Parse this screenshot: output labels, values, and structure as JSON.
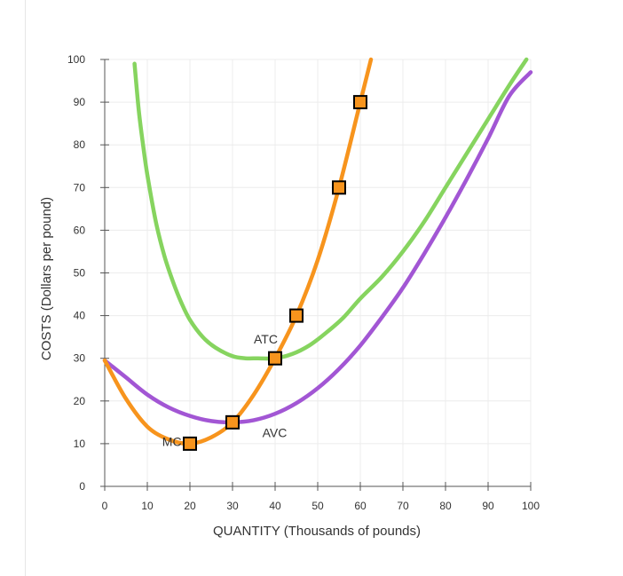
{
  "chart_data": {
    "type": "line",
    "xlabel": "QUANTITY (Thousands of pounds)",
    "ylabel": "COSTS (Dollars per pound)",
    "xlim": [
      0,
      100
    ],
    "ylim": [
      0,
      100
    ],
    "x_ticks": [
      "0",
      "10",
      "20",
      "30",
      "40",
      "50",
      "60",
      "70",
      "80",
      "90",
      "100"
    ],
    "y_ticks": [
      "0",
      "10",
      "20",
      "30",
      "40",
      "50",
      "60",
      "70",
      "80",
      "90",
      "100"
    ],
    "grid": true,
    "series": [
      {
        "name": "ATC",
        "color": "#86d45f",
        "label_at": [
          35,
          33.5
        ],
        "x": [
          7,
          8,
          9,
          10,
          12,
          14,
          16,
          18,
          20,
          23,
          26,
          30,
          33,
          36,
          40,
          44,
          48,
          52,
          56,
          60,
          65,
          70,
          75,
          80,
          85,
          90,
          95,
          99
        ],
        "y": [
          99,
          88,
          80,
          73,
          62,
          54,
          48,
          43,
          39,
          35,
          32.5,
          30.5,
          30,
          30,
          30,
          31,
          33,
          36,
          39.5,
          44,
          49,
          55,
          62,
          70,
          78,
          86,
          94,
          100
        ]
      },
      {
        "name": "AVC",
        "color": "#a256d4",
        "label_at": [
          37,
          11.5
        ],
        "x": [
          0,
          5,
          10,
          15,
          20,
          25,
          30,
          35,
          40,
          45,
          50,
          55,
          60,
          65,
          70,
          75,
          80,
          85,
          90,
          95,
          100
        ],
        "y": [
          29.5,
          25.5,
          21.5,
          18.5,
          16.5,
          15.3,
          15,
          15.5,
          17,
          19.5,
          23,
          27.5,
          33,
          39.5,
          46.5,
          54.5,
          63,
          72,
          81.5,
          91.5,
          97
        ]
      },
      {
        "name": "MC",
        "color": "#f7941d",
        "label_at": [
          13.5,
          9.5
        ],
        "markers_x": [
          20,
          30,
          40,
          45,
          55,
          60
        ],
        "markers_y": [
          10,
          15,
          30,
          40,
          70,
          90
        ],
        "x": [
          0,
          5,
          10,
          15,
          20,
          25,
          30,
          35,
          40,
          45,
          50,
          55,
          60,
          62.5
        ],
        "y": [
          29.5,
          20.5,
          14,
          11,
          10,
          11.5,
          15,
          21.5,
          30,
          40,
          53,
          70,
          90,
          100
        ]
      }
    ]
  }
}
